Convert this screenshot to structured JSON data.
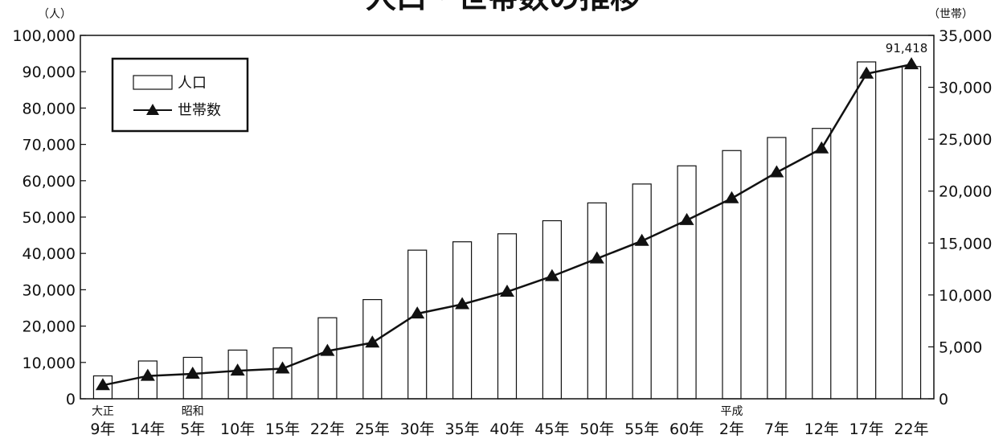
{
  "chart_data": {
    "type": "bar+line",
    "title": "人口・世帯数の推移",
    "left_unit": "（人）",
    "right_unit": "（世帯）",
    "categories": [
      "9年",
      "14年",
      "5年",
      "10年",
      "15年",
      "22年",
      "25年",
      "30年",
      "35年",
      "40年",
      "45年",
      "50年",
      "55年",
      "60年",
      "2年",
      "7年",
      "12年",
      "17年",
      "22年"
    ],
    "era_labels": [
      {
        "index": 0,
        "text": "大正"
      },
      {
        "index": 2,
        "text": "昭和"
      },
      {
        "index": 14,
        "text": "平成"
      }
    ],
    "series": [
      {
        "name": "人口",
        "type": "bar",
        "axis": "left",
        "values": [
          6300,
          10400,
          11400,
          13400,
          14000,
          22300,
          27300,
          40900,
          43200,
          45400,
          49000,
          53900,
          59100,
          64100,
          68300,
          71900,
          74400,
          92700,
          91418
        ]
      },
      {
        "name": "世帯数",
        "type": "line",
        "axis": "right",
        "values": [
          1300,
          2200,
          2400,
          2700,
          2900,
          4600,
          5400,
          8200,
          9100,
          10300,
          11800,
          13500,
          15200,
          17200,
          19300,
          21800,
          24100,
          31300,
          32200
        ]
      }
    ],
    "left_axis": {
      "ylim": [
        0,
        100000
      ],
      "ticks": [
        "0",
        "10,000",
        "20,000",
        "30,000",
        "40,000",
        "50,000",
        "60,000",
        "70,000",
        "80,000",
        "90,000",
        "100,000"
      ]
    },
    "right_axis": {
      "ylim": [
        0,
        35000
      ],
      "ticks": [
        "0",
        "5,000",
        "10,000",
        "15,000",
        "20,000",
        "25,000",
        "30,000",
        "35,000"
      ]
    },
    "annotation": {
      "text": "91,418",
      "series": "人口",
      "index": 18
    },
    "legend": {
      "position": "top-left"
    },
    "grid": false
  }
}
